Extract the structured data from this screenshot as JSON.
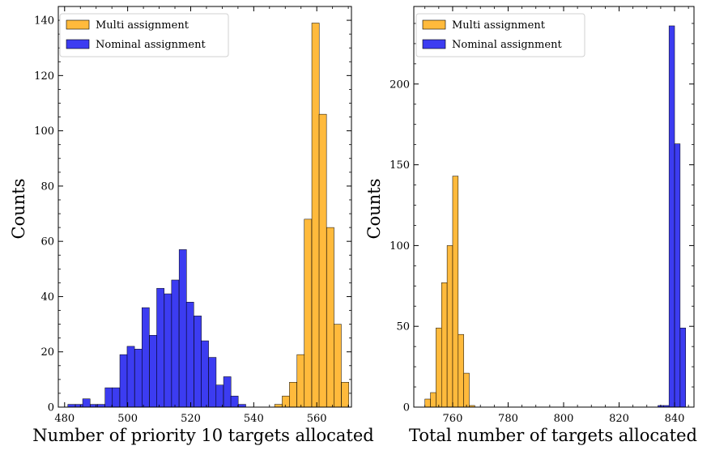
{
  "chart_data": [
    {
      "type": "bar",
      "xlabel": "Number of priority 10 targets allocated",
      "ylabel": "Counts",
      "xlim": [
        478,
        571
      ],
      "ylim": [
        0,
        145
      ],
      "xticks": [
        480,
        500,
        520,
        540,
        560
      ],
      "yticks": [
        0,
        20,
        40,
        60,
        80,
        100,
        120,
        140
      ],
      "bin_width": 2.35,
      "legend": "top-left",
      "series": [
        {
          "name": "Multi assignment",
          "color": "#FFAE1A",
          "bins": [
            {
              "x": 547.8,
              "y": 1
            },
            {
              "x": 550.2,
              "y": 4
            },
            {
              "x": 552.5,
              "y": 9
            },
            {
              "x": 554.9,
              "y": 19
            },
            {
              "x": 557.2,
              "y": 68
            },
            {
              "x": 559.6,
              "y": 139
            },
            {
              "x": 561.9,
              "y": 106
            },
            {
              "x": 564.3,
              "y": 65
            },
            {
              "x": 566.6,
              "y": 30
            },
            {
              "x": 569.0,
              "y": 9
            }
          ]
        },
        {
          "name": "Nominal assignment",
          "color": "#1A1AEE",
          "bins": [
            {
              "x": 482.2,
              "y": 1
            },
            {
              "x": 484.6,
              "y": 1
            },
            {
              "x": 486.9,
              "y": 3
            },
            {
              "x": 489.3,
              "y": 1
            },
            {
              "x": 491.6,
              "y": 1
            },
            {
              "x": 494.0,
              "y": 7
            },
            {
              "x": 496.3,
              "y": 7
            },
            {
              "x": 498.7,
              "y": 19
            },
            {
              "x": 501.0,
              "y": 22
            },
            {
              "x": 503.4,
              "y": 21
            },
            {
              "x": 505.7,
              "y": 36
            },
            {
              "x": 508.1,
              "y": 26
            },
            {
              "x": 510.4,
              "y": 43
            },
            {
              "x": 512.8,
              "y": 41
            },
            {
              "x": 515.1,
              "y": 46
            },
            {
              "x": 517.5,
              "y": 57
            },
            {
              "x": 519.8,
              "y": 38
            },
            {
              "x": 522.2,
              "y": 33
            },
            {
              "x": 524.5,
              "y": 24
            },
            {
              "x": 526.9,
              "y": 18
            },
            {
              "x": 529.2,
              "y": 8
            },
            {
              "x": 531.6,
              "y": 11
            },
            {
              "x": 533.9,
              "y": 4
            },
            {
              "x": 536.3,
              "y": 1
            }
          ]
        }
      ]
    },
    {
      "type": "bar",
      "xlabel": "Total number of targets allocated",
      "ylabel": "Counts",
      "xlim": [
        746,
        847
      ],
      "ylim": [
        0,
        248
      ],
      "xticks": [
        760,
        780,
        800,
        820,
        840
      ],
      "yticks": [
        0,
        50,
        100,
        150,
        200
      ],
      "bin_width": 2.0,
      "legend": "top-left",
      "series": [
        {
          "name": "Multi assignment",
          "color": "#FFAE1A",
          "bins": [
            {
              "x": 751.0,
              "y": 5
            },
            {
              "x": 753.0,
              "y": 9
            },
            {
              "x": 755.0,
              "y": 49
            },
            {
              "x": 757.0,
              "y": 77
            },
            {
              "x": 759.0,
              "y": 100
            },
            {
              "x": 761.0,
              "y": 143
            },
            {
              "x": 763.0,
              "y": 45
            },
            {
              "x": 765.0,
              "y": 21
            },
            {
              "x": 767.0,
              "y": 1
            }
          ]
        },
        {
          "name": "Nominal assignment",
          "color": "#1A1AEE",
          "bins": [
            {
              "x": 835.0,
              "y": 1
            },
            {
              "x": 837.0,
              "y": 1
            },
            {
              "x": 839.0,
              "y": 236
            },
            {
              "x": 841.0,
              "y": 163
            },
            {
              "x": 843.0,
              "y": 49
            }
          ]
        }
      ]
    }
  ]
}
